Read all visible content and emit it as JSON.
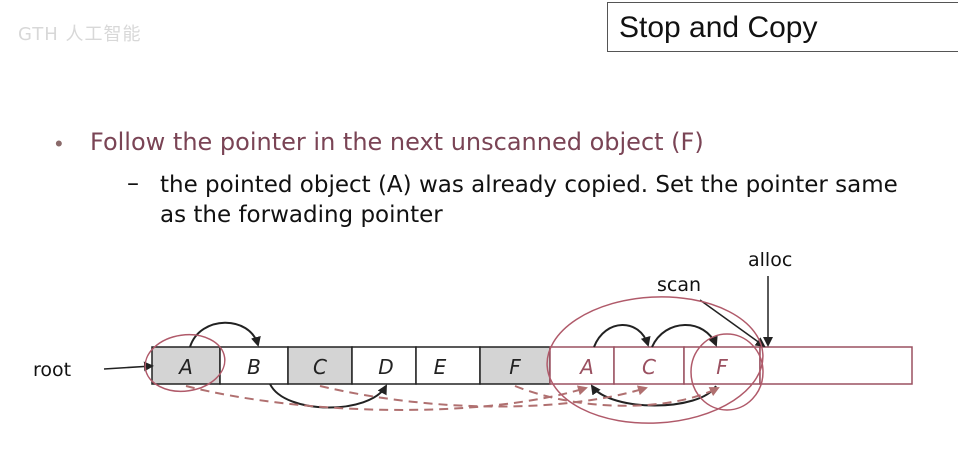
{
  "watermark": "GTH 人工智能",
  "title": "Stop and Copy",
  "bullet": "Follow the pointer in the next unscanned object (F)",
  "sub_bullet": {
    "dash": "–",
    "text": "the pointed object (A) was already copied. Set the pointer same as the forwading pointer"
  },
  "diagram": {
    "root_label": "root",
    "scan_label": "scan",
    "alloc_label": "alloc",
    "old_space": [
      "A",
      "B",
      "C",
      "D",
      "E",
      "F"
    ],
    "new_space": [
      "A",
      "C",
      "F",
      ""
    ]
  },
  "colors": {
    "bullet_text": "#7a4455",
    "new_space_border": "#9a5060",
    "grey_cell": "#d4d4d4",
    "circle": "#b05a6a",
    "dashed": "#b07070"
  }
}
